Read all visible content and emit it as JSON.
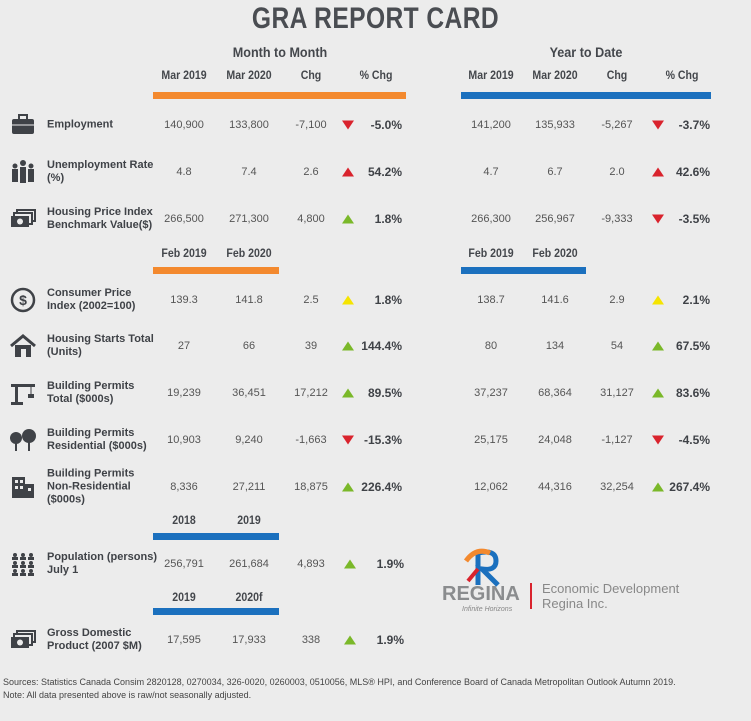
{
  "title": "GRA REPORT CARD",
  "colors": {
    "orange": "#f3892e",
    "blue": "#1b70be",
    "up_red": "#d9232d",
    "down_red": "#d9232d",
    "up_green": "#7ab829",
    "yellow": "#f5e400"
  },
  "sections": {
    "month": "Month to Month",
    "year": "Year to Date"
  },
  "headers": {
    "top": {
      "c1": "Mar 2019",
      "c2": "Mar 2020",
      "chg": "Chg",
      "pct": "% Chg"
    },
    "feb": {
      "c1": "Feb 2019",
      "c2": "Feb 2020"
    },
    "pop": {
      "c1": "2018",
      "c2": "2019"
    },
    "gdp": {
      "c1": "2019",
      "c2": "2020f"
    }
  },
  "rows": [
    {
      "label": "Employment",
      "icon": "briefcase-icon",
      "m": [
        "140,900",
        "133,800",
        "-7,100",
        "-5.0%"
      ],
      "ma": "down",
      "y": [
        "141,200",
        "135,933",
        "-5,267",
        "-3.7%"
      ],
      "ya": "down"
    },
    {
      "label": "Unemployment Rate (%)",
      "icon": "people-icon",
      "m": [
        "4.8",
        "7.4",
        "2.6",
        "54.2%"
      ],
      "ma": "up-red",
      "y": [
        "4.7",
        "6.7",
        "2.0",
        "42.6%"
      ],
      "ya": "up-red"
    },
    {
      "label": "Housing Price Index Benchmark Value($)",
      "icon": "money-icon",
      "m": [
        "266,500",
        "271,300",
        "4,800",
        "1.8%"
      ],
      "ma": "up",
      "y": [
        "266,300",
        "256,967",
        "-9,333",
        "-3.5%"
      ],
      "ya": "down"
    },
    {
      "label": "Consumer Price Index (2002=100)",
      "icon": "dollar-coin-icon",
      "m": [
        "139.3",
        "141.8",
        "2.5",
        "1.8%"
      ],
      "ma": "yellow",
      "y": [
        "138.7",
        "141.6",
        "2.9",
        "2.1%"
      ],
      "ya": "yellow"
    },
    {
      "label": "Housing Starts Total (Units)",
      "icon": "house-icon",
      "m": [
        "27",
        "66",
        "39",
        "144.4%"
      ],
      "ma": "up",
      "y": [
        "80",
        "134",
        "54",
        "67.5%"
      ],
      "ya": "up"
    },
    {
      "label": "Building Permits Total ($000s)",
      "icon": "crane-icon",
      "m": [
        "19,239",
        "36,451",
        "17,212",
        "89.5%"
      ],
      "ma": "up",
      "y": [
        "37,237",
        "68,364",
        "31,127",
        "83.6%"
      ],
      "ya": "up"
    },
    {
      "label": "Building Permits Residential ($000s)",
      "icon": "trees-icon",
      "m": [
        "10,903",
        "9,240",
        "-1,663",
        "-15.3%"
      ],
      "ma": "down",
      "y": [
        "25,175",
        "24,048",
        "-1,127",
        "-4.5%"
      ],
      "ya": "down"
    },
    {
      "label": "Building Permits Non-Residential ($000s)",
      "icon": "building-icon",
      "m": [
        "8,336",
        "27,211",
        "18,875",
        "226.4%"
      ],
      "ma": "up",
      "y": [
        "12,062",
        "44,316",
        "32,254",
        "267.4%"
      ],
      "ya": "up"
    },
    {
      "label": "Population (persons) July 1",
      "icon": "population-icon",
      "m": [
        "256,791",
        "261,684",
        "4,893",
        "1.9%"
      ],
      "ma": "up"
    },
    {
      "label": "Gross Domestic Product (2007 $M)",
      "icon": "money-icon",
      "m": [
        "17,595",
        "17,933",
        "338",
        "1.9%"
      ],
      "ma": "up"
    }
  ],
  "logo": {
    "name": "REGINA",
    "tagline": "Infinite Horizons",
    "org": "Economic Development Regina Inc."
  },
  "footer": {
    "sources": "Sources: Statistics Canada Consim 2820128, 0270034, 326-0020, 0260003, 0510056, MLS® HPI, and Conference Board of Canada Metropolitan Outlook Autumn 2019.",
    "note": "Note: All data presented above is raw/not seasonally adjusted."
  }
}
